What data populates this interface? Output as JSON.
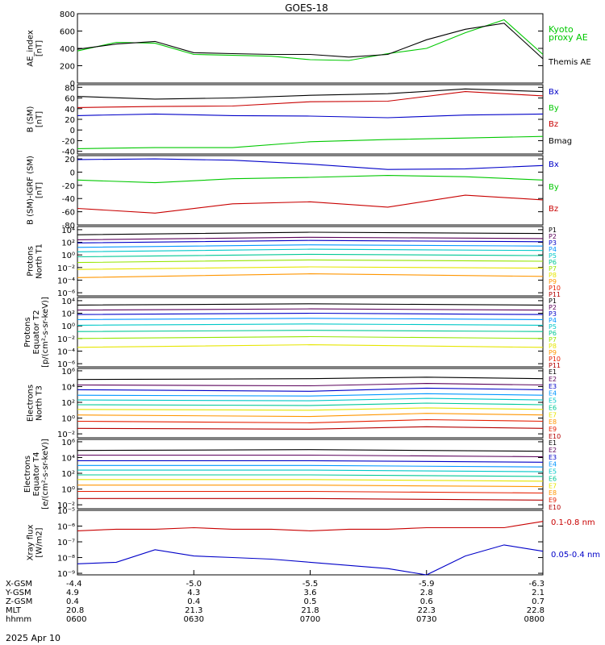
{
  "title": "GOES-18",
  "date": "2025 Apr 10",
  "panels": [
    {
      "id": "ae",
      "ylabel": [
        "AE_index",
        "[nT]"
      ],
      "scale": "linear",
      "ylim": [
        0,
        800
      ],
      "ticks": [
        0,
        200,
        400,
        600,
        800
      ],
      "tick_labels": [
        "0",
        "200",
        "400",
        "600",
        "800"
      ],
      "legend": [
        {
          "text": "Kyoto",
          "color": "#00c800"
        },
        {
          "text": "proxy AE",
          "color": "#00c800"
        },
        {
          "text": "Themis AE",
          "color": "#000000"
        }
      ]
    },
    {
      "id": "bsm",
      "ylabel": [
        "B (SM)",
        "[nT]"
      ],
      "scale": "linear",
      "ylim": [
        -45,
        85
      ],
      "ticks": [
        -40,
        -20,
        0,
        20,
        40,
        60,
        80
      ],
      "tick_labels": [
        "-40",
        "-20",
        "0",
        "20",
        "40",
        "60",
        "80"
      ],
      "legend": [
        {
          "text": "Bx",
          "color": "#0000c8"
        },
        {
          "text": "By",
          "color": "#00c800"
        },
        {
          "text": "Bz",
          "color": "#c80000"
        },
        {
          "text": "Bmag",
          "color": "#000000"
        }
      ]
    },
    {
      "id": "bigrf",
      "ylabel": [
        "B (SM)-IGRF (SM)",
        "[nT]"
      ],
      "scale": "linear",
      "ylim": [
        -80,
        25
      ],
      "ticks": [
        -80,
        -60,
        -40,
        -20,
        0,
        20
      ],
      "tick_labels": [
        "-80",
        "-60",
        "-40",
        "-20",
        "0",
        "20"
      ],
      "legend": [
        {
          "text": "Bx",
          "color": "#0000c8"
        },
        {
          "text": "By",
          "color": "#00c800"
        },
        {
          "text": "Bz",
          "color": "#c80000"
        }
      ]
    },
    {
      "id": "pt1",
      "ylabel": [
        "Protons",
        "North T1"
      ],
      "scale": "log",
      "ylim": [
        -6.5,
        4.5
      ],
      "ticks": [
        -6,
        -4,
        -2,
        0,
        2,
        4
      ],
      "tick_labels": [
        "10⁻⁶",
        "10⁻⁴",
        "10⁻²",
        "10⁰",
        "10²",
        "10⁴"
      ],
      "legend": [
        {
          "text": "P1",
          "color": "#000000"
        },
        {
          "text": "P2",
          "color": "#5a005a"
        },
        {
          "text": "P3",
          "color": "#0000c8"
        },
        {
          "text": "P4",
          "color": "#0096ff"
        },
        {
          "text": "P5",
          "color": "#00c8c8"
        },
        {
          "text": "P6",
          "color": "#00c896"
        },
        {
          "text": "P7",
          "color": "#96e600"
        },
        {
          "text": "P8",
          "color": "#e6e600"
        },
        {
          "text": "P9",
          "color": "#ff9600"
        },
        {
          "text": "P10",
          "color": "#e61e00"
        },
        {
          "text": "P11",
          "color": "#b40000"
        }
      ]
    },
    {
      "id": "pt2",
      "ylabel": [
        "Protons",
        "Equator T2",
        "[p/(cm²-s-sr-keV)]"
      ],
      "scale": "log",
      "ylim": [
        -6.5,
        4.5
      ],
      "ticks": [
        -6,
        -4,
        -2,
        0,
        2,
        4
      ],
      "tick_labels": [
        "10⁻⁶",
        "10⁻⁴",
        "10⁻²",
        "10⁰",
        "10²",
        "10⁴"
      ],
      "legend": [
        {
          "text": "P1",
          "color": "#000000"
        },
        {
          "text": "P2",
          "color": "#5a005a"
        },
        {
          "text": "P3",
          "color": "#0000c8"
        },
        {
          "text": "P4",
          "color": "#0096ff"
        },
        {
          "text": "P5",
          "color": "#00c8c8"
        },
        {
          "text": "P6",
          "color": "#00c896"
        },
        {
          "text": "P7",
          "color": "#96e600"
        },
        {
          "text": "P8",
          "color": "#e6e600"
        },
        {
          "text": "P9",
          "color": "#ff9600"
        },
        {
          "text": "P10",
          "color": "#e61e00"
        },
        {
          "text": "P11",
          "color": "#b40000"
        }
      ]
    },
    {
      "id": "et3",
      "ylabel": [
        "Electrons",
        "North T3"
      ],
      "scale": "log",
      "ylim": [
        -2.5,
        6.3
      ],
      "ticks": [
        -2,
        0,
        2,
        4,
        6
      ],
      "tick_labels": [
        "10⁻²",
        "10⁰",
        "10²",
        "10⁴",
        "10⁶"
      ],
      "legend": [
        {
          "text": "E1",
          "color": "#000000"
        },
        {
          "text": "E2",
          "color": "#5a005a"
        },
        {
          "text": "E3",
          "color": "#0000c8"
        },
        {
          "text": "E4",
          "color": "#0096ff"
        },
        {
          "text": "E5",
          "color": "#00c8c8"
        },
        {
          "text": "E6",
          "color": "#00c896"
        },
        {
          "text": "E7",
          "color": "#e6e600"
        },
        {
          "text": "E8",
          "color": "#ff9600"
        },
        {
          "text": "E9",
          "color": "#e61e00"
        },
        {
          "text": "E10",
          "color": "#b40000"
        }
      ]
    },
    {
      "id": "et4",
      "ylabel": [
        "Electrons",
        "Equator T4",
        "[e/(cm²-s-sr-keV)]"
      ],
      "scale": "log",
      "ylim": [
        -2.5,
        6.3
      ],
      "ticks": [
        -2,
        0,
        2,
        4,
        6
      ],
      "tick_labels": [
        "10⁻²",
        "10⁰",
        "10²",
        "10⁴",
        "10⁶"
      ],
      "legend": [
        {
          "text": "E1",
          "color": "#000000"
        },
        {
          "text": "E2",
          "color": "#5a005a"
        },
        {
          "text": "E3",
          "color": "#0000c8"
        },
        {
          "text": "E4",
          "color": "#0096ff"
        },
        {
          "text": "E5",
          "color": "#00c8c8"
        },
        {
          "text": "E6",
          "color": "#00c896"
        },
        {
          "text": "E7",
          "color": "#e6e600"
        },
        {
          "text": "E8",
          "color": "#ff9600"
        },
        {
          "text": "E9",
          "color": "#e61e00"
        },
        {
          "text": "E10",
          "color": "#b40000"
        }
      ]
    },
    {
      "id": "xray",
      "ylabel": [
        "Xray flux",
        "[W/m2]"
      ],
      "scale": "log",
      "ylim": [
        -9.1,
        -5
      ],
      "ticks": [
        -9,
        -8,
        -7,
        -6,
        -5
      ],
      "tick_labels": [
        "10⁻⁹",
        "10⁻⁸",
        "10⁻⁷",
        "10⁻⁶",
        "10⁻⁵"
      ],
      "legend": [
        {
          "text": "0.1-0.8 nm",
          "color": "#c80000"
        },
        {
          "text": "0.05-0.4 nm",
          "color": "#0000c8"
        }
      ]
    }
  ],
  "x_axis": {
    "rows": [
      {
        "label": "X-GSM",
        "values": [
          "-4.4",
          "-5.0",
          "-5.5",
          "-5.9",
          "-6.3"
        ]
      },
      {
        "label": "Y-GSM",
        "values": [
          "4.9",
          "4.3",
          "3.6",
          "2.8",
          "2.1"
        ]
      },
      {
        "label": "Z-GSM",
        "values": [
          "0.4",
          "0.4",
          "0.5",
          "0.6",
          "0.7"
        ]
      },
      {
        "label": "MLT",
        "values": [
          "20.8",
          "21.3",
          "21.8",
          "22.3",
          "22.8"
        ]
      },
      {
        "label": "hhmm",
        "values": [
          "0600",
          "0630",
          "0700",
          "0730",
          "0800"
        ]
      }
    ]
  },
  "chart_data": [
    {
      "type": "line",
      "panel": "ae",
      "x": [
        0,
        10,
        20,
        30,
        40,
        50,
        60,
        70,
        80,
        90,
        100,
        110,
        120
      ],
      "series": [
        {
          "name": "Kyoto proxy AE",
          "color": "#00c800",
          "values": [
            370,
            470,
            460,
            330,
            320,
            310,
            270,
            260,
            340,
            400,
            580,
            730,
            330
          ]
        },
        {
          "name": "Themis AE",
          "color": "#000000",
          "values": [
            390,
            450,
            480,
            350,
            340,
            330,
            330,
            300,
            330,
            500,
            620,
            690,
            280
          ]
        }
      ]
    },
    {
      "type": "line",
      "panel": "bsm",
      "x": [
        0,
        20,
        40,
        60,
        80,
        100,
        120
      ],
      "series": [
        {
          "name": "Bx",
          "color": "#0000c8",
          "values": [
            27,
            30,
            27,
            26,
            23,
            28,
            30
          ]
        },
        {
          "name": "By",
          "color": "#00c800",
          "values": [
            -35,
            -33,
            -33,
            -22,
            -18,
            -15,
            -12
          ]
        },
        {
          "name": "Bz",
          "color": "#c80000",
          "values": [
            42,
            44,
            45,
            53,
            54,
            72,
            64
          ]
        },
        {
          "name": "Bmag",
          "color": "#000000",
          "values": [
            63,
            58,
            60,
            65,
            68,
            77,
            72
          ]
        }
      ]
    },
    {
      "type": "line",
      "panel": "bigrf",
      "x": [
        0,
        20,
        40,
        60,
        80,
        100,
        120
      ],
      "series": [
        {
          "name": "Bx",
          "color": "#0000c8",
          "values": [
            19,
            20,
            18,
            12,
            4,
            5,
            10
          ]
        },
        {
          "name": "By",
          "color": "#00c800",
          "values": [
            -12,
            -16,
            -10,
            -8,
            -5,
            -7,
            -12
          ]
        },
        {
          "name": "Bz",
          "color": "#c80000",
          "values": [
            -55,
            -62,
            -48,
            -45,
            -53,
            -35,
            -42
          ]
        }
      ]
    },
    {
      "type": "line",
      "panel": "pt1",
      "x": [
        0,
        60,
        120
      ],
      "series": [
        {
          "name": "P1",
          "color": "#000000",
          "values": [
            3.2,
            3.6,
            3.4
          ]
        },
        {
          "name": "P2",
          "color": "#5a005a",
          "values": [
            2.4,
            2.8,
            2.6
          ]
        },
        {
          "name": "P3",
          "color": "#0000c8",
          "values": [
            1.9,
            2.3,
            2.1
          ]
        },
        {
          "name": "P4",
          "color": "#0096ff",
          "values": [
            1.2,
            1.6,
            1.4
          ]
        },
        {
          "name": "P5",
          "color": "#00c8c8",
          "values": [
            0.5,
            0.9,
            0.7
          ]
        },
        {
          "name": "P6",
          "color": "#00c896",
          "values": [
            -0.3,
            0.1,
            -0.1
          ]
        },
        {
          "name": "P7",
          "color": "#96e600",
          "values": [
            -1.2,
            -0.8,
            -1.0
          ]
        },
        {
          "name": "P8",
          "color": "#e6e600",
          "values": [
            -2.3,
            -1.9,
            -2.1
          ]
        },
        {
          "name": "P9",
          "color": "#ff9600",
          "values": [
            -3.6,
            -3.0,
            -3.4
          ]
        }
      ]
    },
    {
      "type": "line",
      "panel": "pt2",
      "x": [
        0,
        60,
        120
      ],
      "series": [
        {
          "name": "P1",
          "color": "#000000",
          "values": [
            3.3,
            3.5,
            3.3
          ]
        },
        {
          "name": "P2",
          "color": "#5a005a",
          "values": [
            2.5,
            2.7,
            2.5
          ]
        },
        {
          "name": "P3",
          "color": "#0000c8",
          "values": [
            1.8,
            2.0,
            1.8
          ]
        },
        {
          "name": "P4",
          "color": "#0096ff",
          "values": [
            1.0,
            1.2,
            1.0
          ]
        },
        {
          "name": "P5",
          "color": "#00c8c8",
          "values": [
            0.1,
            0.3,
            0.1
          ]
        },
        {
          "name": "P6",
          "color": "#00c896",
          "values": [
            -0.9,
            -0.7,
            -0.9
          ]
        },
        {
          "name": "P7",
          "color": "#96e600",
          "values": [
            -2.0,
            -1.7,
            -2.0
          ]
        },
        {
          "name": "P8",
          "color": "#e6e600",
          "values": [
            -3.4,
            -3.0,
            -3.4
          ]
        }
      ]
    },
    {
      "type": "line",
      "panel": "et3",
      "x": [
        0,
        60,
        90,
        120
      ],
      "series": [
        {
          "name": "E1",
          "color": "#000000",
          "values": [
            4.9,
            5.0,
            5.2,
            5.0
          ]
        },
        {
          "name": "E2",
          "color": "#5a005a",
          "values": [
            4.2,
            4.1,
            4.4,
            4.2
          ]
        },
        {
          "name": "E3",
          "color": "#0000c8",
          "values": [
            3.6,
            3.4,
            3.8,
            3.6
          ]
        },
        {
          "name": "E4",
          "color": "#0096ff",
          "values": [
            2.9,
            2.8,
            3.1,
            2.9
          ]
        },
        {
          "name": "E5",
          "color": "#00c8c8",
          "values": [
            2.3,
            2.2,
            2.5,
            2.3
          ]
        },
        {
          "name": "E6",
          "color": "#00c896",
          "values": [
            1.7,
            1.6,
            1.9,
            1.7
          ]
        },
        {
          "name": "E7",
          "color": "#e6e600",
          "values": [
            1.1,
            1.0,
            1.3,
            1.1
          ]
        },
        {
          "name": "E8",
          "color": "#ff9600",
          "values": [
            0.4,
            0.2,
            0.6,
            0.4
          ]
        },
        {
          "name": "E9",
          "color": "#e61e00",
          "values": [
            -0.4,
            -0.6,
            -0.2,
            -0.4
          ]
        },
        {
          "name": "E10",
          "color": "#b40000",
          "values": [
            -1.3,
            -1.4,
            -1.1,
            -1.3
          ]
        }
      ]
    },
    {
      "type": "line",
      "panel": "et4",
      "x": [
        0,
        60,
        120
      ],
      "series": [
        {
          "name": "E1",
          "color": "#000000",
          "values": [
            4.9,
            5.0,
            4.8
          ]
        },
        {
          "name": "E2",
          "color": "#5a005a",
          "values": [
            4.3,
            4.3,
            4.1
          ]
        },
        {
          "name": "E3",
          "color": "#0000c8",
          "values": [
            3.6,
            3.6,
            3.4
          ]
        },
        {
          "name": "E4",
          "color": "#0096ff",
          "values": [
            3.0,
            3.0,
            2.8
          ]
        },
        {
          "name": "E5",
          "color": "#00c8c8",
          "values": [
            2.4,
            2.4,
            2.2
          ]
        },
        {
          "name": "E6",
          "color": "#00c896",
          "values": [
            1.8,
            1.8,
            1.6
          ]
        },
        {
          "name": "E7",
          "color": "#e6e600",
          "values": [
            1.2,
            1.2,
            1.0
          ]
        },
        {
          "name": "E8",
          "color": "#ff9600",
          "values": [
            0.5,
            0.5,
            0.3
          ]
        },
        {
          "name": "E9",
          "color": "#e61e00",
          "values": [
            -0.3,
            -0.3,
            -0.5
          ]
        },
        {
          "name": "E10",
          "color": "#b40000",
          "values": [
            -1.2,
            -1.2,
            -1.4
          ]
        }
      ]
    },
    {
      "type": "line",
      "panel": "xray",
      "x": [
        0,
        10,
        20,
        30,
        40,
        50,
        60,
        70,
        80,
        90,
        100,
        110,
        120
      ],
      "series": [
        {
          "name": "0.1-0.8 nm",
          "color": "#c80000",
          "values": [
            -6.3,
            -6.2,
            -6.2,
            -6.1,
            -6.2,
            -6.2,
            -6.3,
            -6.2,
            -6.2,
            -6.1,
            -6.1,
            -6.1,
            -5.7
          ]
        },
        {
          "name": "0.05-0.4 nm",
          "color": "#0000c8",
          "values": [
            -8.4,
            -8.3,
            -7.5,
            -7.9,
            -8.0,
            -8.1,
            -8.3,
            -8.5,
            -8.7,
            -9.1,
            -7.9,
            -7.2,
            -7.6
          ]
        }
      ]
    }
  ]
}
